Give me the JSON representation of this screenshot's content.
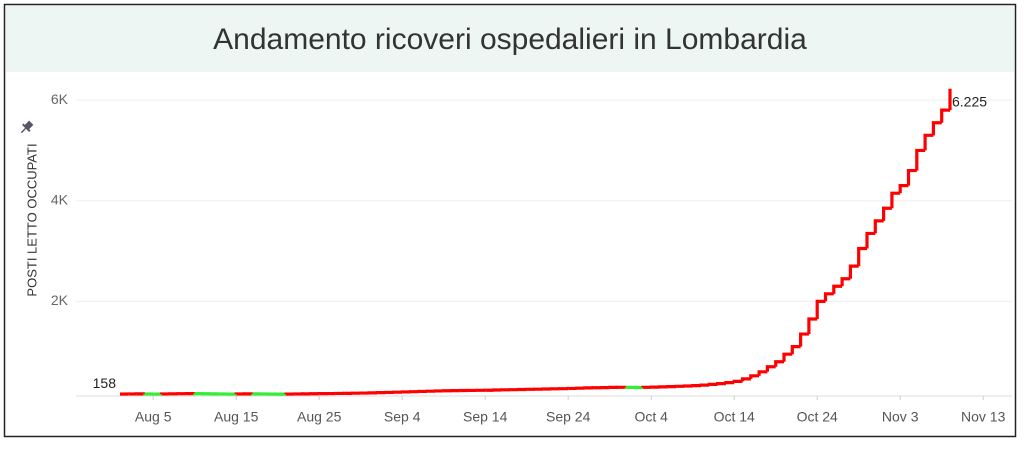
{
  "chart_data": {
    "type": "step",
    "title": "Andamento ricoveri ospedalieri in Lombardia",
    "ylabel": "POSTI LETTO OCCUPATI",
    "categories": [
      "Aug 1",
      "Aug 2",
      "Aug 3",
      "Aug 4",
      "Aug 5",
      "Aug 6",
      "Aug 7",
      "Aug 8",
      "Aug 9",
      "Aug 10",
      "Aug 11",
      "Aug 12",
      "Aug 13",
      "Aug 14",
      "Aug 15",
      "Aug 16",
      "Aug 17",
      "Aug 18",
      "Aug 19",
      "Aug 20",
      "Aug 21",
      "Aug 22",
      "Aug 23",
      "Aug 24",
      "Aug 25",
      "Aug 26",
      "Aug 27",
      "Aug 28",
      "Aug 29",
      "Aug 30",
      "Aug 31",
      "Sep 1",
      "Sep 2",
      "Sep 3",
      "Sep 4",
      "Sep 5",
      "Sep 6",
      "Sep 7",
      "Sep 8",
      "Sep 9",
      "Sep 10",
      "Sep 11",
      "Sep 12",
      "Sep 13",
      "Sep 14",
      "Sep 15",
      "Sep 16",
      "Sep 17",
      "Sep 18",
      "Sep 19",
      "Sep 20",
      "Sep 21",
      "Sep 22",
      "Sep 23",
      "Sep 24",
      "Sep 25",
      "Sep 26",
      "Sep 27",
      "Sep 28",
      "Sep 29",
      "Sep 30",
      "Oct 1",
      "Oct 2",
      "Oct 3",
      "Oct 4",
      "Oct 5",
      "Oct 6",
      "Oct 7",
      "Oct 8",
      "Oct 9",
      "Oct 10",
      "Oct 11",
      "Oct 12",
      "Oct 13",
      "Oct 14",
      "Oct 15",
      "Oct 16",
      "Oct 17",
      "Oct 18",
      "Oct 19",
      "Oct 20",
      "Oct 21",
      "Oct 22",
      "Oct 23",
      "Oct 24",
      "Oct 25",
      "Oct 26",
      "Oct 27",
      "Oct 28",
      "Oct 29",
      "Oct 30",
      "Oct 31",
      "Nov 1",
      "Nov 2",
      "Nov 3",
      "Nov 4",
      "Nov 5",
      "Nov 6",
      "Nov 7",
      "Nov 8",
      "Nov 9",
      "Nov 10",
      "Nov 11",
      "Nov 12",
      "Nov 13"
    ],
    "series": [
      {
        "color": "#ff0000",
        "decrease_color": "#33ee33",
        "values": [
          158,
          160,
          162,
          160,
          158,
          160,
          163,
          165,
          167,
          166,
          164,
          162,
          160,
          158,
          160,
          162,
          161,
          160,
          158,
          157,
          158,
          160,
          162,
          164,
          166,
          168,
          170,
          172,
          175,
          178,
          182,
          186,
          190,
          195,
          200,
          205,
          210,
          215,
          220,
          223,
          226,
          228,
          230,
          232,
          234,
          238,
          242,
          245,
          248,
          252,
          255,
          258,
          262,
          265,
          270,
          275,
          280,
          283,
          286,
          290,
          292,
          290,
          288,
          292,
          296,
          300,
          305,
          312,
          318,
          325,
          335,
          350,
          365,
          385,
          410,
          460,
          520,
          600,
          700,
          800,
          950,
          1100,
          1350,
          1650,
          2000,
          2150,
          2300,
          2450,
          2700,
          3050,
          3350,
          3600,
          3850,
          4150,
          4300,
          4600,
          5000,
          5300,
          5550,
          5800,
          6225,
          null,
          null,
          null,
          null
        ],
        "value_labels": [
          "158",
          null,
          null,
          null,
          null,
          null,
          null,
          null,
          null,
          null,
          null,
          null,
          null,
          null,
          null,
          null,
          null,
          null,
          null,
          null,
          null,
          null,
          null,
          null,
          null,
          null,
          null,
          null,
          null,
          null,
          null,
          null,
          null,
          null,
          null,
          null,
          null,
          null,
          null,
          null,
          null,
          null,
          null,
          null,
          null,
          null,
          null,
          null,
          null,
          null,
          null,
          null,
          null,
          null,
          null,
          null,
          null,
          null,
          null,
          null,
          null,
          null,
          null,
          null,
          null,
          null,
          null,
          null,
          null,
          null,
          null,
          null,
          null,
          null,
          null,
          null,
          null,
          null,
          null,
          null,
          null,
          null,
          null,
          null,
          null,
          null,
          null,
          null,
          null,
          null,
          null,
          null,
          null,
          null,
          null,
          null,
          null,
          null,
          null,
          null,
          "6.225",
          null,
          null,
          null,
          null
        ]
      }
    ],
    "xticks": [
      "Aug 5",
      "Aug 15",
      "Aug 25",
      "Sep 4",
      "Sep 14",
      "Sep 24",
      "Oct 4",
      "Oct 14",
      "Oct 24",
      "Nov 3",
      "Nov 13"
    ],
    "ylim": [
      0,
      6300
    ],
    "yticks": [
      {
        "value": 2000,
        "label": "2K"
      },
      {
        "value": 4000,
        "label": "4K"
      },
      {
        "value": 6000,
        "label": "6K"
      }
    ],
    "grid": true
  }
}
